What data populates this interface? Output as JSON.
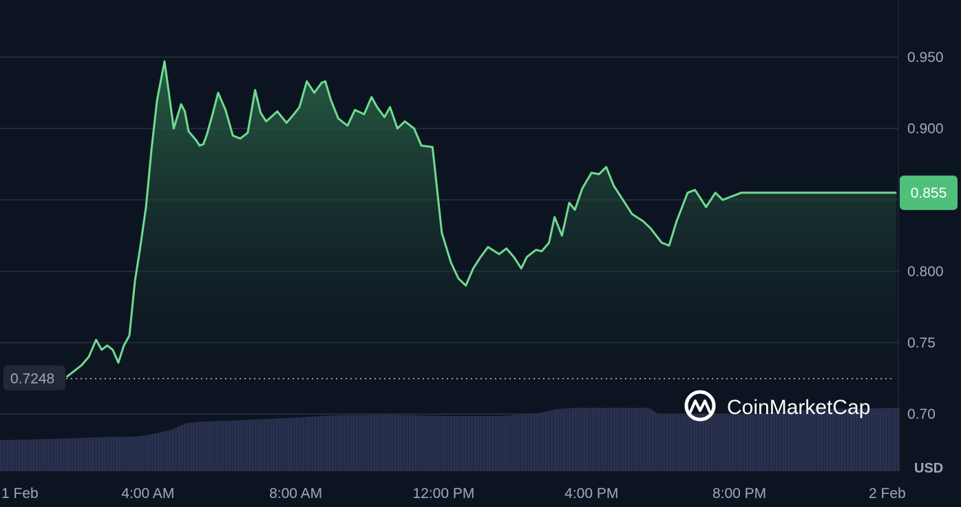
{
  "chart_data": {
    "type": "line",
    "currency": "USD",
    "watermark": "CoinMarketCap",
    "open_price_label": "0.7248",
    "current_price_label": "0.855",
    "colors": {
      "background": "#0d1421",
      "line": "#6fdb8f",
      "area_top": "#2c6b4a",
      "volume": "#2a3150",
      "grid": "#2a3142",
      "badge": "#4ec07a"
    },
    "y_axis": {
      "ylim": [
        0.66,
        0.99
      ],
      "ticks": [
        {
          "value": 0.95,
          "label": "0.950"
        },
        {
          "value": 0.9,
          "label": "0.900"
        },
        {
          "value": 0.85,
          "label": ""
        },
        {
          "value": 0.8,
          "label": "0.800"
        },
        {
          "value": 0.75,
          "label": "0.75"
        },
        {
          "value": 0.7,
          "label": "0.70"
        }
      ]
    },
    "x_axis": {
      "xlim_hours": [
        0,
        24.3
      ],
      "ticks": [
        {
          "hour": 0,
          "label": "1 Feb"
        },
        {
          "hour": 4,
          "label": "4:00 AM"
        },
        {
          "hour": 8,
          "label": "8:00 AM"
        },
        {
          "hour": 12,
          "label": "12:00 PM"
        },
        {
          "hour": 16,
          "label": "4:00 PM"
        },
        {
          "hour": 20,
          "label": "8:00 PM"
        },
        {
          "hour": 24,
          "label": "2 Feb"
        }
      ]
    },
    "price_series": {
      "name": "Price",
      "x_hours": [
        1.8,
        2.0,
        2.2,
        2.4,
        2.6,
        2.75,
        2.9,
        3.05,
        3.2,
        3.35,
        3.5,
        3.65,
        3.8,
        3.95,
        4.1,
        4.25,
        4.45,
        4.7,
        4.9,
        5.0,
        5.1,
        5.2,
        5.3,
        5.4,
        5.5,
        5.6,
        5.75,
        5.9,
        6.1,
        6.3,
        6.5,
        6.7,
        6.9,
        7.05,
        7.2,
        7.5,
        7.75,
        7.95,
        8.1,
        8.3,
        8.5,
        8.7,
        8.8,
        8.95,
        9.15,
        9.4,
        9.6,
        9.85,
        10.05,
        10.2,
        10.4,
        10.55,
        10.75,
        10.95,
        11.2,
        11.4,
        11.7,
        11.95,
        12.2,
        12.4,
        12.6,
        12.8,
        13.0,
        13.2,
        13.5,
        13.7,
        13.9,
        14.1,
        14.25,
        14.5,
        14.65,
        14.85,
        15.0,
        15.2,
        15.4,
        15.55,
        15.75,
        16.0,
        16.2,
        16.4,
        16.6,
        16.9,
        17.1,
        17.4,
        17.6,
        17.9,
        18.1,
        18.3,
        18.6,
        18.8,
        19.1,
        19.35,
        19.55,
        19.75,
        20.05,
        20.25,
        20.6,
        20.85,
        21.1,
        21.45,
        21.7,
        21.95,
        22.15,
        22.5,
        22.85,
        23.15,
        23.35,
        23.6,
        23.85,
        24.1,
        24.25
      ],
      "y": [
        0.726,
        0.73,
        0.734,
        0.74,
        0.752,
        0.745,
        0.748,
        0.745,
        0.736,
        0.748,
        0.755,
        0.793,
        0.818,
        0.845,
        0.886,
        0.92,
        0.947,
        0.9,
        0.917,
        0.912,
        0.898,
        0.895,
        0.892,
        0.888,
        0.889,
        0.896,
        0.91,
        0.925,
        0.913,
        0.895,
        0.893,
        0.897,
        0.927,
        0.911,
        0.905,
        0.912,
        0.904,
        0.91,
        0.915,
        0.933,
        0.925,
        0.932,
        0.933,
        0.92,
        0.907,
        0.902,
        0.913,
        0.91,
        0.922,
        0.915,
        0.908,
        0.915,
        0.9,
        0.905,
        0.9,
        0.888,
        0.887,
        0.827,
        0.806,
        0.795,
        0.79,
        0.802,
        0.81,
        0.817,
        0.812,
        0.816,
        0.81,
        0.802,
        0.81,
        0.815,
        0.814,
        0.82,
        0.838,
        0.825,
        0.848,
        0.843,
        0.858,
        0.869,
        0.868,
        0.873,
        0.86,
        0.848,
        0.84,
        0.835,
        0.83,
        0.82,
        0.818,
        0.835,
        0.855,
        0.857,
        0.845,
        0.855,
        0.85,
        0.852,
        0.855,
        0.855,
        0.855,
        0.855,
        0.855,
        0.855,
        0.855,
        0.855,
        0.855,
        0.855,
        0.855,
        0.855,
        0.855,
        0.855,
        0.855,
        0.855,
        0.855
      ]
    },
    "volume_series": {
      "name": "Volume",
      "x_hours": [
        0,
        1.5,
        2.5,
        3.0,
        3.5,
        3.8,
        4.2,
        4.6,
        5.0,
        5.5,
        6.5,
        8.0,
        9.0,
        10.5,
        12.0,
        13.5,
        14.5,
        15.0,
        15.5,
        17.5,
        17.8,
        20.0,
        22.0,
        24.3
      ],
      "relative_level": [
        0.45,
        0.47,
        0.49,
        0.5,
        0.5,
        0.51,
        0.55,
        0.6,
        0.7,
        0.72,
        0.74,
        0.78,
        0.81,
        0.82,
        0.8,
        0.8,
        0.84,
        0.9,
        0.92,
        0.92,
        0.82,
        0.82,
        0.9,
        0.92
      ]
    }
  }
}
